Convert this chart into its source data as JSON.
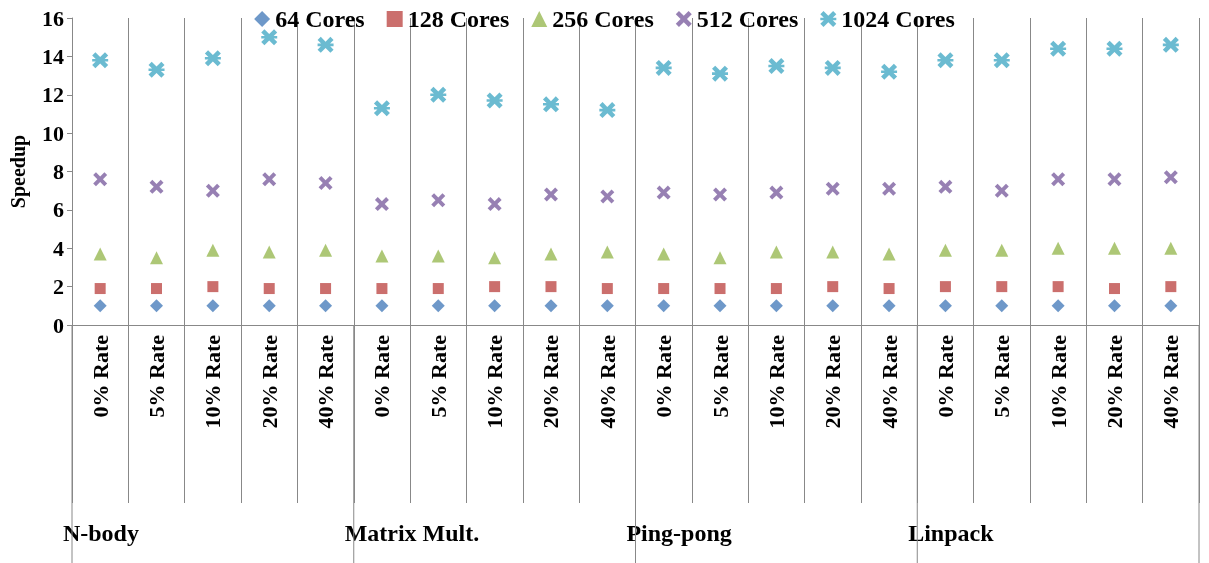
{
  "chart_data": {
    "type": "scatter",
    "ylabel": "Speedup",
    "ylim": [
      0,
      16
    ],
    "yticks": [
      0,
      2,
      4,
      6,
      8,
      10,
      12,
      14,
      16
    ],
    "grid": "x",
    "legend": "top",
    "categories": [
      "0% Rate",
      "5% Rate",
      "10% Rate",
      "20% Rate",
      "40% Rate",
      "0% Rate",
      "5% Rate",
      "10% Rate",
      "20% Rate",
      "40% Rate",
      "0% Rate",
      "5% Rate",
      "10% Rate",
      "20% Rate",
      "40% Rate",
      "0% Rate",
      "5% Rate",
      "10% Rate",
      "20% Rate",
      "40% Rate"
    ],
    "annotations": [
      "N-body",
      "Matrix Mult.",
      "Ping-pong",
      "Linpack"
    ],
    "series": [
      {
        "name": "64 Cores",
        "color": "#4a7ebb",
        "marker": "diamond",
        "values": [
          1,
          1,
          1,
          1,
          1,
          1,
          1,
          1,
          1,
          1,
          1,
          1,
          1,
          1,
          1,
          1,
          1,
          1,
          1,
          1
        ]
      },
      {
        "name": "128 Cores",
        "color": "#be4b48",
        "marker": "square",
        "values": [
          1.9,
          1.9,
          2.0,
          1.9,
          1.9,
          1.9,
          1.9,
          2.0,
          2.0,
          1.9,
          1.9,
          1.9,
          1.9,
          2.0,
          1.9,
          2.0,
          2.0,
          2.0,
          1.9,
          2.0
        ]
      },
      {
        "name": "256 Cores",
        "color": "#98b954",
        "marker": "triangle",
        "values": [
          3.7,
          3.5,
          3.9,
          3.8,
          3.9,
          3.6,
          3.6,
          3.5,
          3.7,
          3.8,
          3.7,
          3.5,
          3.8,
          3.8,
          3.7,
          3.9,
          3.9,
          4.0,
          4.0,
          4.0
        ]
      },
      {
        "name": "512 Cores",
        "color": "#7d60a0",
        "marker": "cross",
        "values": [
          7.6,
          7.2,
          7.0,
          7.6,
          7.4,
          6.3,
          6.5,
          6.3,
          6.8,
          6.7,
          6.9,
          6.8,
          6.9,
          7.1,
          7.1,
          7.2,
          7.0,
          7.6,
          7.6,
          7.7
        ]
      },
      {
        "name": "1024 Cores",
        "color": "#46aac5",
        "marker": "star",
        "values": [
          13.8,
          13.3,
          13.9,
          15.0,
          14.6,
          11.3,
          12.0,
          11.7,
          11.5,
          11.2,
          13.4,
          13.1,
          13.5,
          13.4,
          13.2,
          13.8,
          13.8,
          14.4,
          14.4,
          14.6
        ]
      }
    ]
  }
}
